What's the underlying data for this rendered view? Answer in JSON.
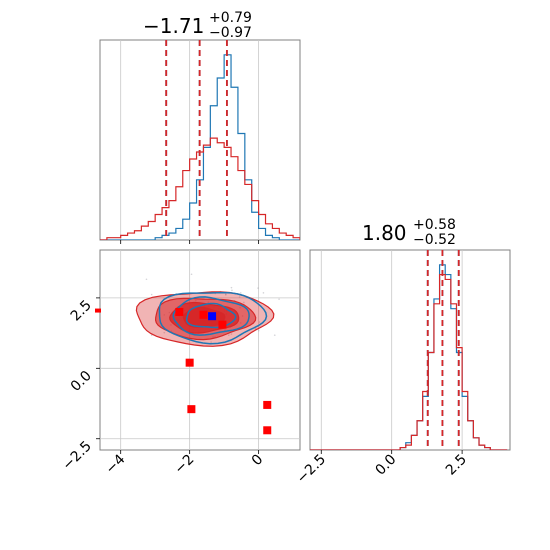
{
  "chart_data": [
    {
      "type": "histogram",
      "panel": "marginal-param-1",
      "title": {
        "value": "−1.71",
        "plus": "+0.79",
        "minus": "−0.97"
      },
      "xlim": [
        -4.6,
        1.2
      ],
      "grid": true,
      "series": [
        {
          "name": "",
          "color": "#1f77b4",
          "bin_edges": [
            -4.6,
            -4.4,
            -4.2,
            -4.0,
            -3.8,
            -3.6,
            -3.4,
            -3.2,
            -3.0,
            -2.8,
            -2.6,
            -2.4,
            -2.2,
            -2.0,
            -1.8,
            -1.6,
            -1.4,
            -1.2,
            -1.0,
            -0.8,
            -0.6,
            -0.4,
            -0.2,
            0.0,
            0.2,
            0.4,
            0.6,
            0.8,
            1.0,
            1.2
          ],
          "counts": [
            0,
            0,
            0,
            0,
            0,
            0,
            0,
            0,
            1,
            2,
            3,
            5,
            9,
            16,
            26,
            40,
            58,
            70,
            80,
            66,
            46,
            26,
            12,
            5,
            2,
            1,
            0,
            0,
            0
          ],
          "quantiles": [
            -2.68,
            -1.71,
            -0.92
          ]
        },
        {
          "name": "",
          "color": "#d62728",
          "bin_edges": [
            -4.6,
            -4.4,
            -4.2,
            -4.0,
            -3.8,
            -3.6,
            -3.4,
            -3.2,
            -3.0,
            -2.8,
            -2.6,
            -2.4,
            -2.2,
            -2.0,
            -1.8,
            -1.6,
            -1.4,
            -1.2,
            -1.0,
            -0.8,
            -0.6,
            -0.4,
            -0.2,
            0.0,
            0.2,
            0.4,
            0.6,
            0.8,
            1.0,
            1.2
          ],
          "counts": [
            0,
            1,
            1,
            2,
            3,
            4,
            6,
            8,
            11,
            14,
            17,
            23,
            30,
            35,
            38,
            41,
            44,
            42,
            40,
            36,
            30,
            24,
            17,
            11,
            7,
            5,
            3,
            2,
            1
          ],
          "quantiles": [
            -2.68,
            -1.71,
            -0.92
          ]
        }
      ]
    },
    {
      "type": "histogram",
      "panel": "marginal-param-2",
      "title": {
        "value": "1.80",
        "plus": "+0.58",
        "minus": "−0.52"
      },
      "xlim": [
        -2.9,
        4.2
      ],
      "xticks": [
        "−2.5",
        "0.0",
        "2.5"
      ],
      "xtick_values": [
        -2.5,
        0.0,
        2.5
      ],
      "grid": true,
      "series": [
        {
          "name": "",
          "color": "#1f77b4",
          "bin_edges": [
            -2.9,
            -2.7,
            -2.5,
            -2.3,
            -2.1,
            -1.9,
            -1.7,
            -1.5,
            -1.3,
            -1.1,
            -0.9,
            -0.7,
            -0.5,
            -0.3,
            -0.1,
            0.1,
            0.3,
            0.5,
            0.7,
            0.9,
            1.1,
            1.3,
            1.5,
            1.7,
            1.9,
            2.1,
            2.3,
            2.5,
            2.7,
            2.9,
            3.1,
            3.3,
            3.5,
            3.7,
            3.9,
            4.1
          ],
          "counts": [
            0,
            0,
            0,
            0,
            0,
            0,
            0,
            0,
            0,
            0,
            0,
            0,
            0,
            0,
            0,
            0,
            1,
            3,
            6,
            12,
            22,
            40,
            62,
            76,
            72,
            58,
            40,
            22,
            12,
            5,
            2,
            1,
            0,
            0,
            0
          ],
          "quantiles": [
            1.28,
            1.8,
            2.38
          ]
        },
        {
          "name": "",
          "color": "#d62728",
          "bin_edges": [
            -2.9,
            -2.7,
            -2.5,
            -2.3,
            -2.1,
            -1.9,
            -1.7,
            -1.5,
            -1.3,
            -1.1,
            -0.9,
            -0.7,
            -0.5,
            -0.3,
            -0.1,
            0.1,
            0.3,
            0.5,
            0.7,
            0.9,
            1.1,
            1.3,
            1.5,
            1.7,
            1.9,
            2.1,
            2.3,
            2.5,
            2.7,
            2.9,
            3.1,
            3.3,
            3.5,
            3.7,
            3.9,
            4.1
          ],
          "counts": [
            0,
            0,
            0,
            0,
            0,
            0,
            0,
            0,
            0,
            0,
            0,
            0,
            0,
            0,
            0,
            0,
            1,
            2,
            6,
            12,
            24,
            40,
            60,
            72,
            70,
            60,
            42,
            24,
            12,
            5,
            2,
            1,
            0,
            0,
            0
          ],
          "quantiles": [
            1.28,
            1.8,
            2.38
          ]
        }
      ]
    },
    {
      "type": "scatter",
      "panel": "joint-param-1-param-2",
      "xlim": [
        -4.6,
        1.2
      ],
      "ylim": [
        -2.9,
        4.2
      ],
      "xticks": [
        "−4",
        "−2",
        "0"
      ],
      "xtick_values": [
        -4,
        -2,
        0
      ],
      "yticks": [
        "−2.5",
        "0.0",
        "2.5"
      ],
      "ytick_values": [
        -2.5,
        0.0,
        2.5
      ],
      "grid": true,
      "contours": [
        {
          "name": "",
          "color": "#d62728",
          "filled": true,
          "center": [
            -1.6,
            1.8
          ],
          "radii": [
            [
              1.95,
              0.95
            ],
            [
              1.45,
              0.72
            ],
            [
              1.0,
              0.52
            ],
            [
              0.6,
              0.34
            ]
          ]
        },
        {
          "name": "",
          "color": "#1f77b4",
          "filled": false,
          "center": [
            -1.4,
            1.85
          ],
          "radii": [
            [
              1.55,
              0.9
            ],
            [
              1.1,
              0.65
            ],
            [
              0.7,
              0.42
            ]
          ]
        }
      ],
      "markers_red": [
        [
          -2.3,
          2.0
        ],
        [
          -1.6,
          1.9
        ],
        [
          -1.05,
          1.55
        ],
        [
          -2.0,
          0.2
        ],
        [
          -1.95,
          -1.45
        ],
        [
          0.25,
          -1.3
        ],
        [
          0.25,
          -2.2
        ]
      ],
      "marker_blue": [
        -1.35,
        1.85
      ],
      "edge_marker_red": [
        -4.6,
        2.05
      ]
    }
  ]
}
